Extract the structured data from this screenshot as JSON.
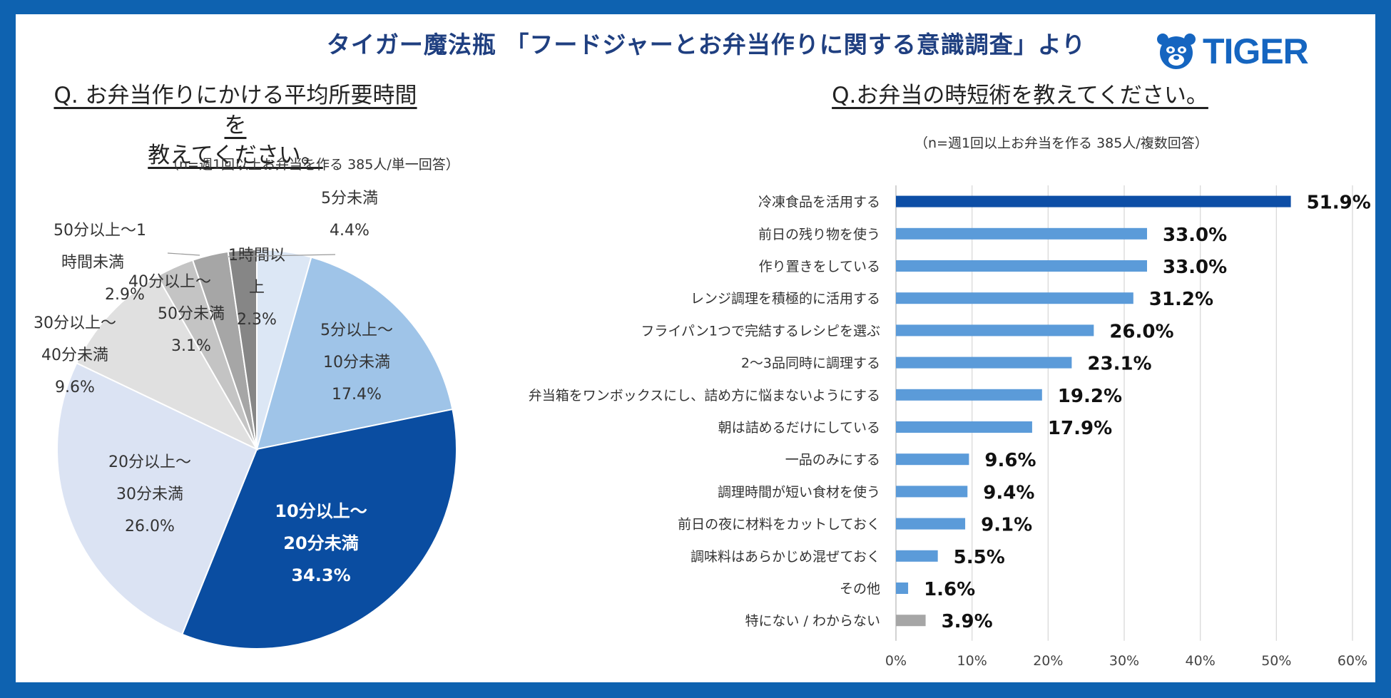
{
  "header": {
    "title": "タイガー魔法瓶 「フードジャーとお弁当作りに関する意識調査」より",
    "logo_text": "TIGER"
  },
  "left": {
    "question_line1": "Q. お弁当作りにかける平均所要時間を",
    "question_line2": "教えてください。",
    "note": "（n=週1回以上お弁当を作る 385人/単一回答）"
  },
  "right": {
    "question": "Q.お弁当の時短術を教えてください。",
    "note": "（n=週1回以上お弁当を作る 385人/複数回答）"
  },
  "colors": {
    "frame": "#0e62b0",
    "title": "#1f3f80",
    "bar_top": "#0d4ea6",
    "bar": "#5b9bd9",
    "bar_none": "#a6a6a6"
  },
  "chart_data": [
    {
      "type": "pie",
      "slices": [
        {
          "label": "5分未満",
          "value": 4.4,
          "text": "4.4%",
          "color": "#dce7f5"
        },
        {
          "label": "5分以上～10分未満",
          "value": 17.4,
          "text": "17.4%",
          "color": "#9fc4e8"
        },
        {
          "label": "10分以上～20分未満",
          "value": 34.3,
          "text": "34.3%",
          "color": "#0a4da1"
        },
        {
          "label": "20分以上～30分未満",
          "value": 26.0,
          "text": "26.0%",
          "color": "#dbe3f3"
        },
        {
          "label": "30分以上～40分未満",
          "value": 9.6,
          "text": "9.6%",
          "color": "#e0e0e0"
        },
        {
          "label": "40分以上～50分未満",
          "value": 3.1,
          "text": "3.1%",
          "color": "#c4c4c4"
        },
        {
          "label": "50分以上～1時間未満",
          "value": 2.9,
          "text": "2.9%",
          "color": "#a6a6a6"
        },
        {
          "label": "1時間以上",
          "value": 2.3,
          "text": "2.3%",
          "color": "#868686"
        }
      ],
      "label_lines": [
        [
          "5分未満",
          "4.4%"
        ],
        [
          "5分以上～",
          "10分未満",
          "17.4%"
        ],
        [
          "10分以上～",
          "20分未満",
          "34.3%"
        ],
        [
          "20分以上～",
          "30分未満",
          "26.0%"
        ],
        [
          "30分以上～",
          "40分未満",
          "9.6%"
        ],
        [
          "40分以上～",
          "50分未満",
          "3.1%"
        ],
        [
          "50分以上～1",
          "時間未満",
          "2.9%"
        ],
        [
          "1時間以",
          "上",
          "2.3%"
        ]
      ]
    },
    {
      "type": "bar",
      "orientation": "horizontal",
      "categories": [
        "冷凍食品を活用する",
        "前日の残り物を使う",
        "作り置きをしている",
        "レンジ調理を積極的に活用する",
        "フライパン1つで完結するレシピを選ぶ",
        "2～3品同時に調理する",
        "弁当箱をワンボックスにし、詰め方に悩まないようにする",
        "朝は詰めるだけにしている",
        "一品のみにする",
        "調理時間が短い食材を使う",
        "前日の夜に材料をカットしておく",
        "調味料はあらかじめ混ぜておく",
        "その他",
        "特にない / わからない"
      ],
      "values": [
        51.9,
        33.0,
        33.0,
        31.2,
        26.0,
        23.1,
        19.2,
        17.9,
        9.6,
        9.4,
        9.1,
        5.5,
        1.6,
        3.9
      ],
      "value_labels": [
        "51.9%",
        "33.0%",
        "33.0%",
        "31.2%",
        "26.0%",
        "23.1%",
        "19.2%",
        "17.9%",
        "9.6%",
        "9.4%",
        "9.1%",
        "5.5%",
        "1.6%",
        "3.9%"
      ],
      "xlim": [
        0,
        60
      ],
      "ticks": [
        "0%",
        "10%",
        "20%",
        "30%",
        "40%",
        "50%",
        "60%"
      ],
      "grid": true
    }
  ]
}
